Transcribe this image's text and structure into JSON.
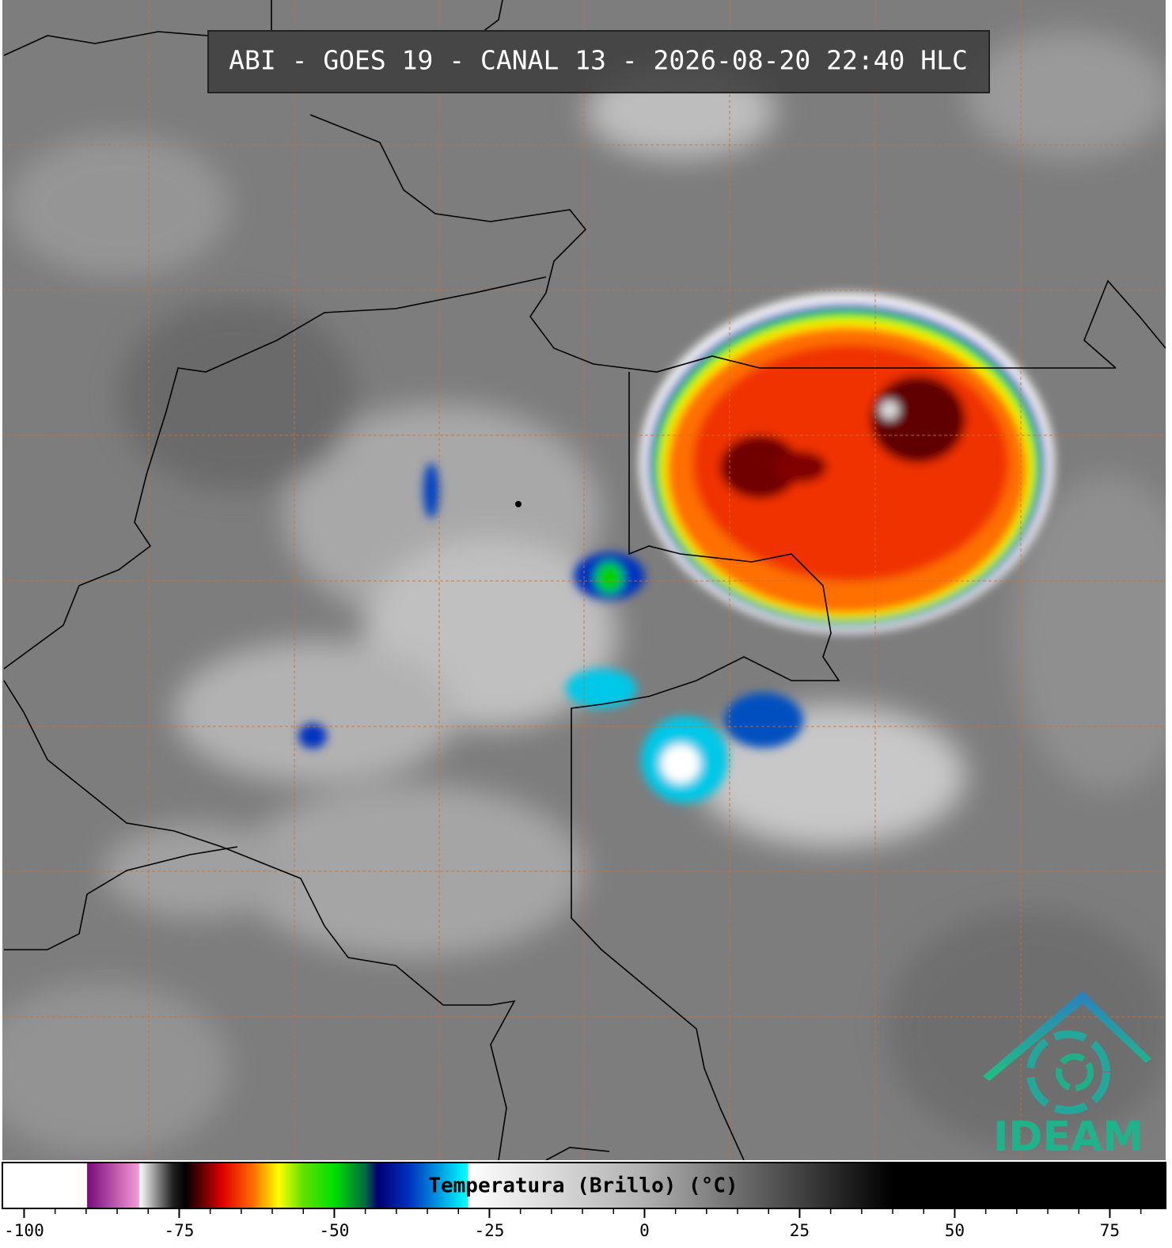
{
  "header": {
    "title": "ABI - GOES 19 - CANAL 13 - 2026-08-20 22:40 HLC"
  },
  "logo": {
    "text": "IDEAM"
  },
  "colorbar": {
    "label": "Temperatura (Brillo) (°C)",
    "xlim": [
      -103.5,
      84
    ],
    "xticks": [
      -100,
      -75,
      -50,
      -25,
      0,
      25,
      50,
      75
    ],
    "minor_ticks": [
      -95,
      -90,
      -85,
      -80,
      -70,
      -65,
      -60,
      -55,
      -45,
      -40,
      -35,
      -30,
      -20,
      -15,
      -10,
      -5,
      5,
      10,
      15,
      20,
      30,
      35,
      40,
      45,
      55,
      60,
      65,
      70,
      80
    ],
    "stops": [
      {
        "value": -103.5,
        "color": "#ffffff"
      },
      {
        "value": -89.9,
        "color": "#ffffff"
      },
      {
        "value": -89.8,
        "color": "#7a0a7a"
      },
      {
        "value": -81.5,
        "color": "#f59ad8"
      },
      {
        "value": -81.4,
        "color": "#ffffff"
      },
      {
        "value": -76,
        "color": "#202020"
      },
      {
        "value": -74,
        "color": "#000000"
      },
      {
        "value": -68,
        "color": "#e00000"
      },
      {
        "value": -63,
        "color": "#ff7000"
      },
      {
        "value": -59,
        "color": "#ffff00"
      },
      {
        "value": -55,
        "color": "#60e000"
      },
      {
        "value": -50,
        "color": "#00e000"
      },
      {
        "value": -45,
        "color": "#006a40"
      },
      {
        "value": -43,
        "color": "#000070"
      },
      {
        "value": -38,
        "color": "#0030c0"
      },
      {
        "value": -28.5,
        "color": "#00ffff"
      },
      {
        "value": -28.4,
        "color": "#ffffff"
      },
      {
        "value": 0,
        "color": "#b0b0b0"
      },
      {
        "value": 40,
        "color": "#000000"
      },
      {
        "value": 84,
        "color": "#000000"
      }
    ]
  }
}
